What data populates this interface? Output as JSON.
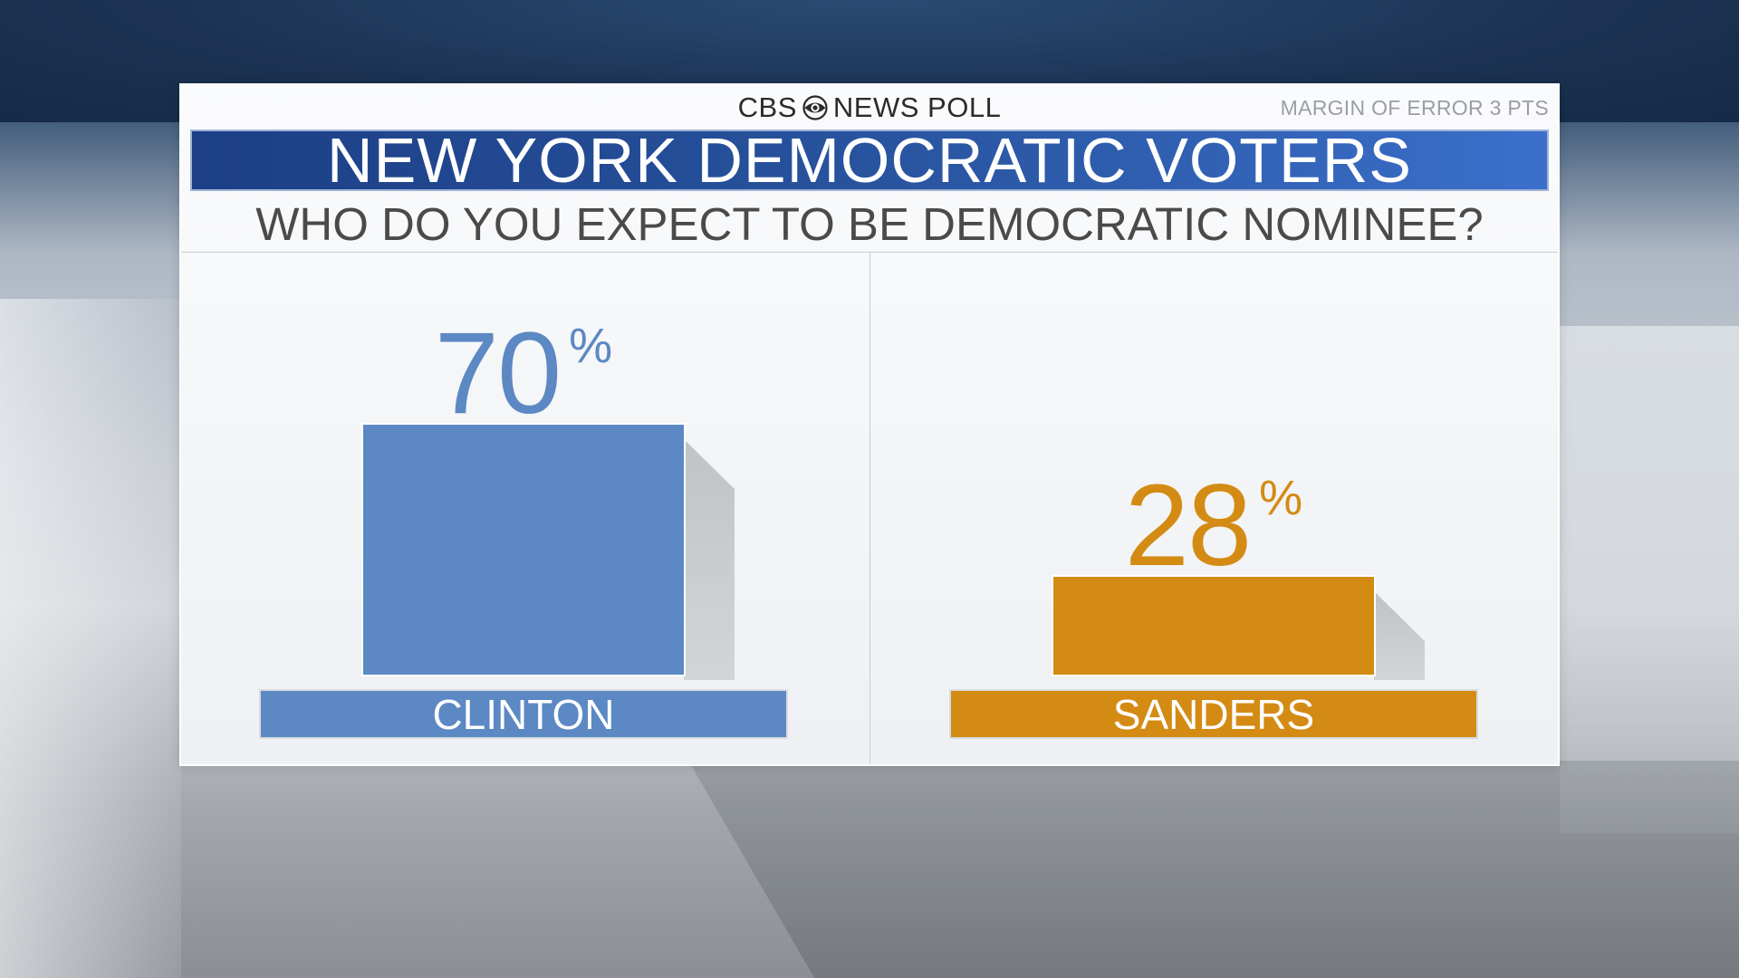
{
  "header": {
    "brand_left": "CBS",
    "brand_right": "NEWS POLL",
    "margin_note": "MARGIN OF ERROR 3 PTS",
    "title": "NEW YORK DEMOCRATIC VOTERS",
    "subtitle": "WHO DO YOU EXPECT TO BE DEMOCRATIC NOMINEE?"
  },
  "colors": {
    "clinton": "#5c88c4",
    "sanders": "#d48b14",
    "title_bar": "#28539e"
  },
  "chart_data": {
    "type": "bar",
    "title": "NEW YORK DEMOCRATIC VOTERS",
    "subtitle": "WHO DO YOU EXPECT TO BE DEMOCRATIC NOMINEE?",
    "categories": [
      "CLINTON",
      "SANDERS"
    ],
    "values": [
      70,
      28
    ],
    "value_labels": [
      "70",
      "28"
    ],
    "unit": "%",
    "ylim": [
      0,
      100
    ],
    "grid": false,
    "legend": "none"
  }
}
